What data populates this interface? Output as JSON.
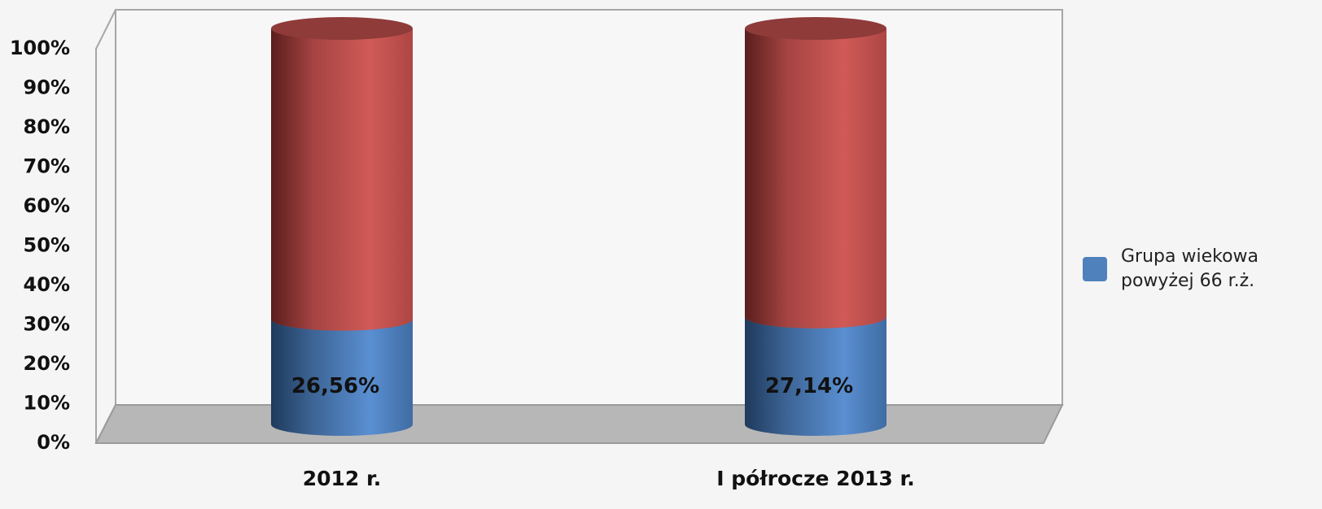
{
  "chart_data": {
    "type": "stacked_bar_3d_cylinder",
    "categories": [
      "2012 r.",
      "I półrocze 2013 r."
    ],
    "series": [
      {
        "name": "Grupa wiekowa\npowyżej 66 r.ż.",
        "color": "#4f81bd",
        "values": [
          26.56,
          27.14
        ],
        "value_labels": [
          "26,56%",
          "27,14%"
        ]
      },
      {
        "color": "#c0504d",
        "values": [
          73.44,
          72.86
        ]
      }
    ],
    "ylim": [
      0,
      100
    ],
    "yticks": [
      {
        "value": 0,
        "label": "0%"
      },
      {
        "value": 10,
        "label": "10%"
      },
      {
        "value": 20,
        "label": "20%"
      },
      {
        "value": 30,
        "label": "30%"
      },
      {
        "value": 40,
        "label": "40%"
      },
      {
        "value": 50,
        "label": "50%"
      },
      {
        "value": 60,
        "label": "60%"
      },
      {
        "value": 70,
        "label": "70%"
      },
      {
        "value": 80,
        "label": "80%"
      },
      {
        "value": 90,
        "label": "90%"
      },
      {
        "value": 100,
        "label": "100%"
      }
    ],
    "legend": "right"
  }
}
